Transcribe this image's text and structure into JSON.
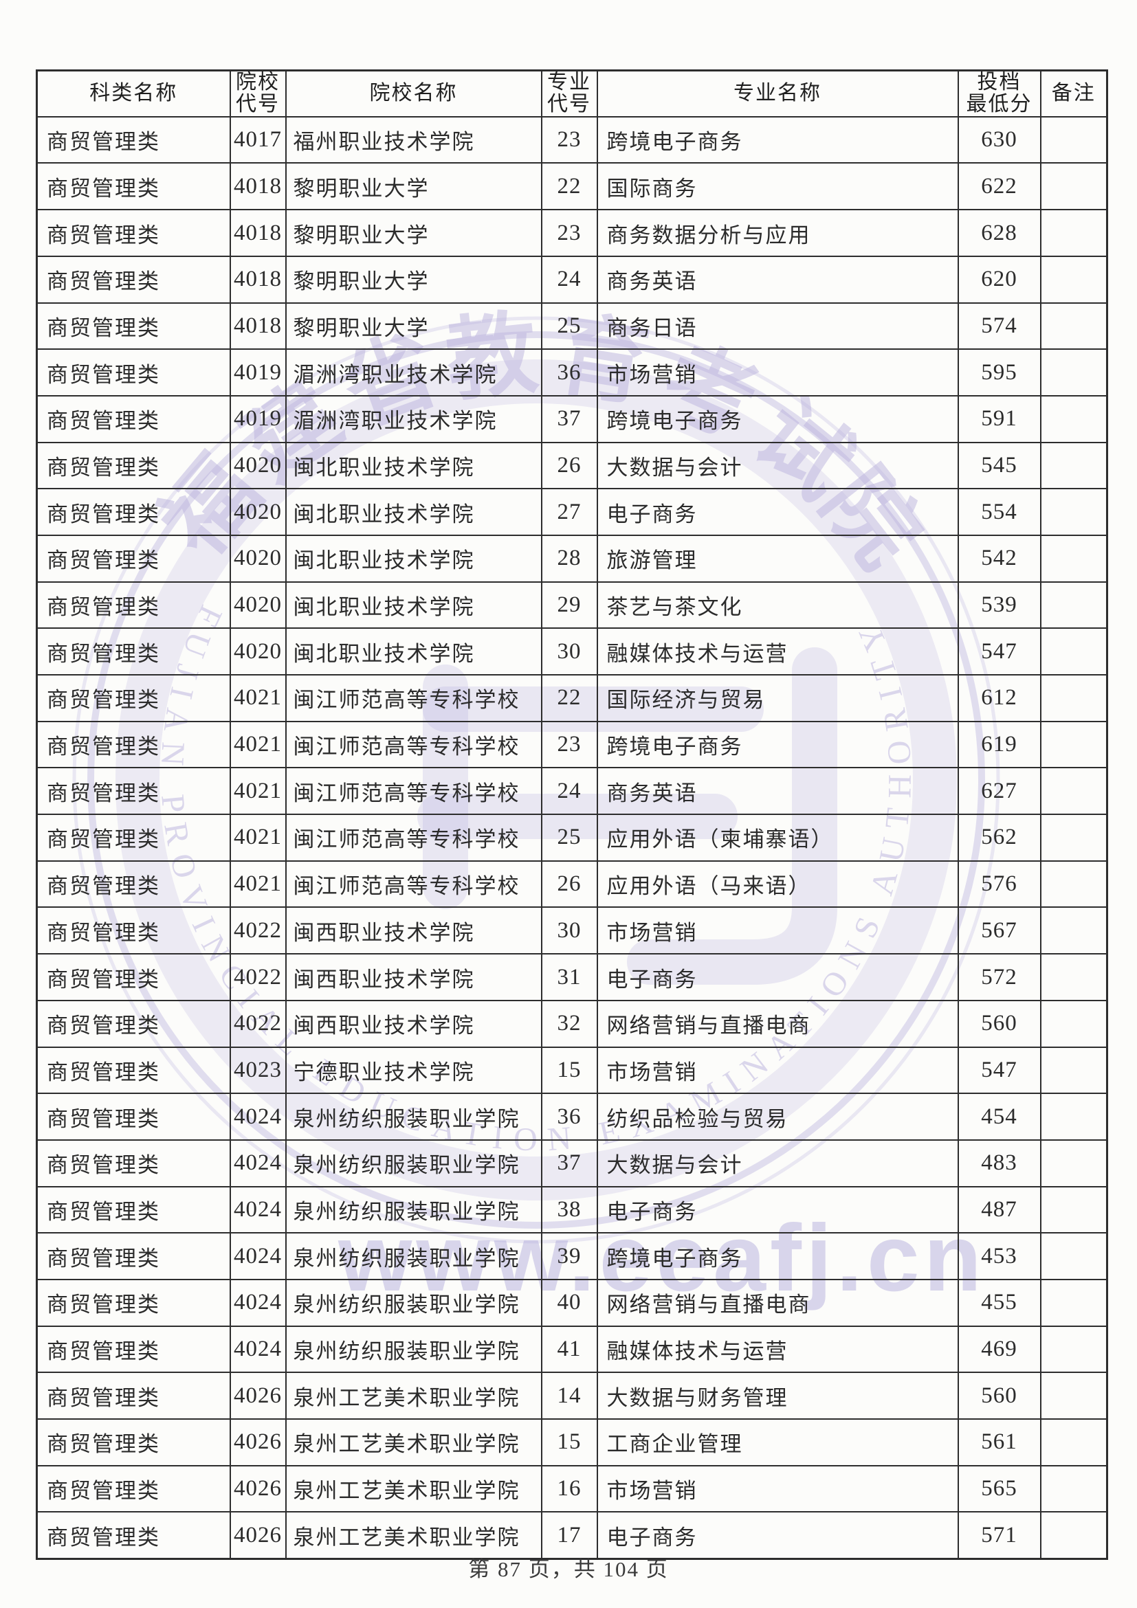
{
  "page": {
    "footer": "第 87 页，共 104 页"
  },
  "watermark": {
    "color": "#b7b0dc",
    "url_text": "www.eeafj.cn",
    "ring_text": "FUJIAN PROVINCIAL EDUCATION EXAMINATIONS AUTHORITY",
    "seal_chars": [
      "福",
      "建",
      "省",
      "教",
      "育",
      "考",
      "试",
      "院"
    ]
  },
  "table": {
    "headers": [
      {
        "key": "category",
        "lines": [
          "科类名称"
        ]
      },
      {
        "key": "school-code",
        "lines": [
          "院校",
          "代号"
        ]
      },
      {
        "key": "school-name",
        "lines": [
          "院校名称"
        ]
      },
      {
        "key": "major-code",
        "lines": [
          "专业",
          "代号"
        ]
      },
      {
        "key": "major-name",
        "lines": [
          "专业名称"
        ]
      },
      {
        "key": "min-score",
        "lines": [
          "投档",
          "最低分"
        ]
      },
      {
        "key": "remarks",
        "lines": [
          "备注"
        ]
      }
    ],
    "rows": [
      [
        "商贸管理类",
        "4017",
        "福州职业技术学院",
        "23",
        "跨境电子商务",
        "630",
        ""
      ],
      [
        "商贸管理类",
        "4018",
        "黎明职业大学",
        "22",
        "国际商务",
        "622",
        ""
      ],
      [
        "商贸管理类",
        "4018",
        "黎明职业大学",
        "23",
        "商务数据分析与应用",
        "628",
        ""
      ],
      [
        "商贸管理类",
        "4018",
        "黎明职业大学",
        "24",
        "商务英语",
        "620",
        ""
      ],
      [
        "商贸管理类",
        "4018",
        "黎明职业大学",
        "25",
        "商务日语",
        "574",
        ""
      ],
      [
        "商贸管理类",
        "4019",
        "湄洲湾职业技术学院",
        "36",
        "市场营销",
        "595",
        ""
      ],
      [
        "商贸管理类",
        "4019",
        "湄洲湾职业技术学院",
        "37",
        "跨境电子商务",
        "591",
        ""
      ],
      [
        "商贸管理类",
        "4020",
        "闽北职业技术学院",
        "26",
        "大数据与会计",
        "545",
        ""
      ],
      [
        "商贸管理类",
        "4020",
        "闽北职业技术学院",
        "27",
        "电子商务",
        "554",
        ""
      ],
      [
        "商贸管理类",
        "4020",
        "闽北职业技术学院",
        "28",
        "旅游管理",
        "542",
        ""
      ],
      [
        "商贸管理类",
        "4020",
        "闽北职业技术学院",
        "29",
        "茶艺与茶文化",
        "539",
        ""
      ],
      [
        "商贸管理类",
        "4020",
        "闽北职业技术学院",
        "30",
        "融媒体技术与运营",
        "547",
        ""
      ],
      [
        "商贸管理类",
        "4021",
        "闽江师范高等专科学校",
        "22",
        "国际经济与贸易",
        "612",
        ""
      ],
      [
        "商贸管理类",
        "4021",
        "闽江师范高等专科学校",
        "23",
        "跨境电子商务",
        "619",
        ""
      ],
      [
        "商贸管理类",
        "4021",
        "闽江师范高等专科学校",
        "24",
        "商务英语",
        "627",
        ""
      ],
      [
        "商贸管理类",
        "4021",
        "闽江师范高等专科学校",
        "25",
        "应用外语（柬埔寨语）",
        "562",
        ""
      ],
      [
        "商贸管理类",
        "4021",
        "闽江师范高等专科学校",
        "26",
        "应用外语（马来语）",
        "576",
        ""
      ],
      [
        "商贸管理类",
        "4022",
        "闽西职业技术学院",
        "30",
        "市场营销",
        "567",
        ""
      ],
      [
        "商贸管理类",
        "4022",
        "闽西职业技术学院",
        "31",
        "电子商务",
        "572",
        ""
      ],
      [
        "商贸管理类",
        "4022",
        "闽西职业技术学院",
        "32",
        "网络营销与直播电商",
        "560",
        ""
      ],
      [
        "商贸管理类",
        "4023",
        "宁德职业技术学院",
        "15",
        "市场营销",
        "547",
        ""
      ],
      [
        "商贸管理类",
        "4024",
        "泉州纺织服装职业学院",
        "36",
        "纺织品检验与贸易",
        "454",
        ""
      ],
      [
        "商贸管理类",
        "4024",
        "泉州纺织服装职业学院",
        "37",
        "大数据与会计",
        "483",
        ""
      ],
      [
        "商贸管理类",
        "4024",
        "泉州纺织服装职业学院",
        "38",
        "电子商务",
        "487",
        ""
      ],
      [
        "商贸管理类",
        "4024",
        "泉州纺织服装职业学院",
        "39",
        "跨境电子商务",
        "453",
        ""
      ],
      [
        "商贸管理类",
        "4024",
        "泉州纺织服装职业学院",
        "40",
        "网络营销与直播电商",
        "455",
        ""
      ],
      [
        "商贸管理类",
        "4024",
        "泉州纺织服装职业学院",
        "41",
        "融媒体技术与运营",
        "469",
        ""
      ],
      [
        "商贸管理类",
        "4026",
        "泉州工艺美术职业学院",
        "14",
        "大数据与财务管理",
        "560",
        ""
      ],
      [
        "商贸管理类",
        "4026",
        "泉州工艺美术职业学院",
        "15",
        "工商企业管理",
        "561",
        ""
      ],
      [
        "商贸管理类",
        "4026",
        "泉州工艺美术职业学院",
        "16",
        "市场营销",
        "565",
        ""
      ],
      [
        "商贸管理类",
        "4026",
        "泉州工艺美术职业学院",
        "17",
        "电子商务",
        "571",
        ""
      ]
    ]
  }
}
